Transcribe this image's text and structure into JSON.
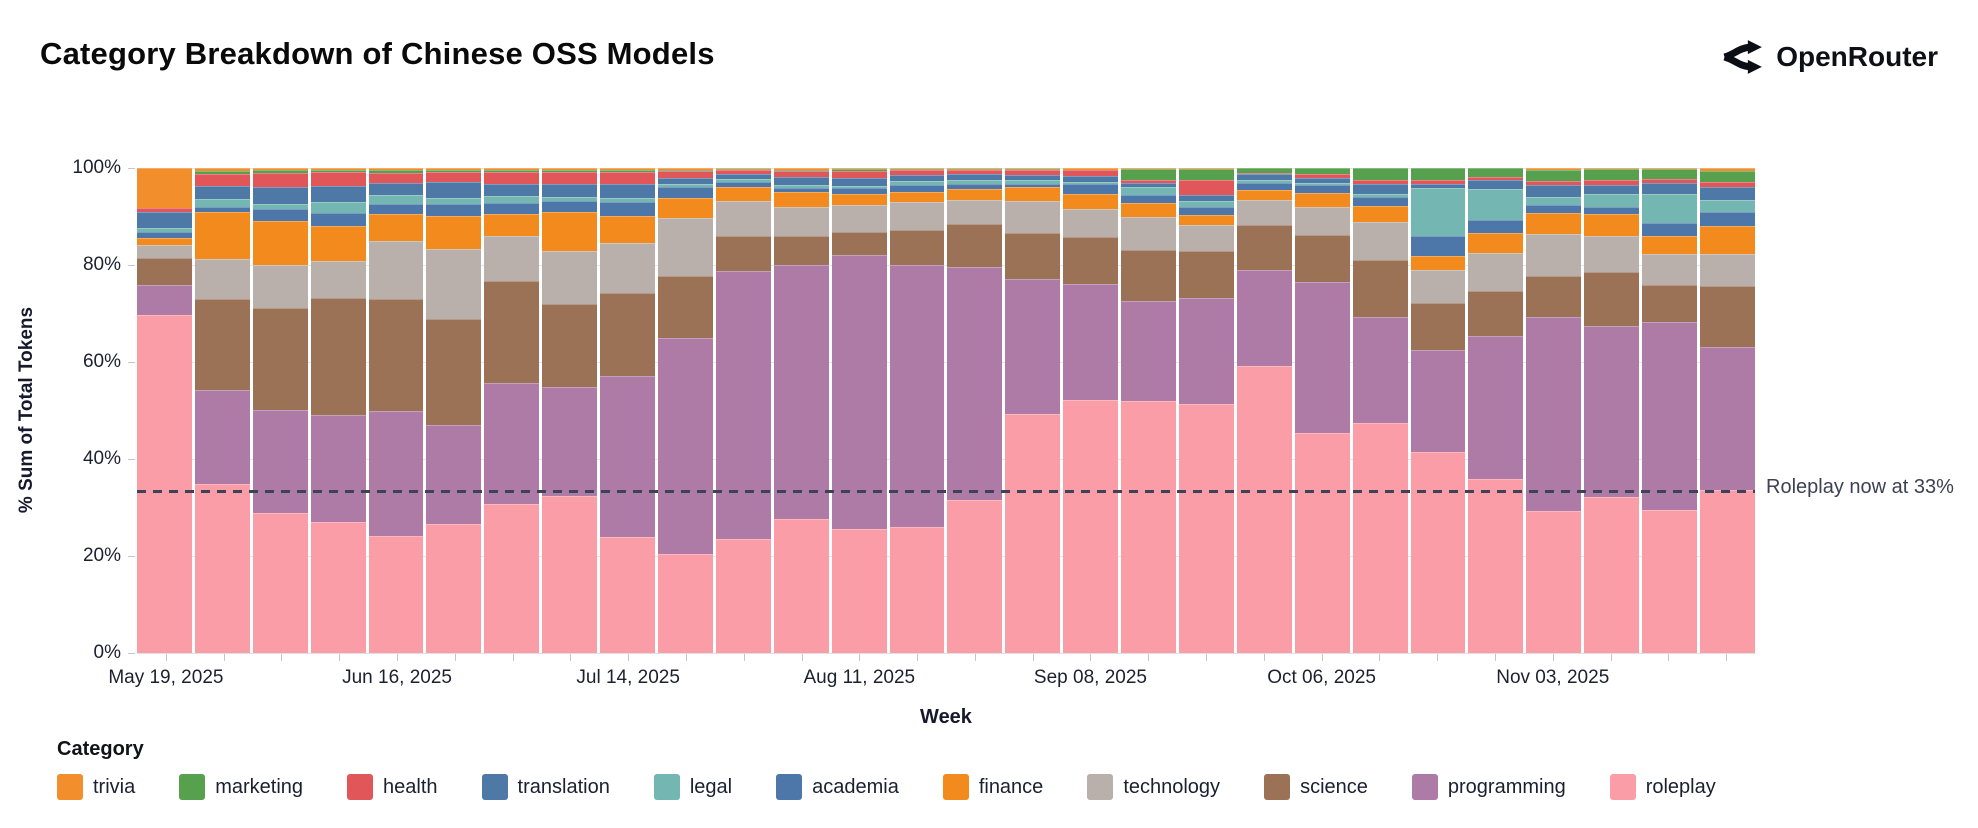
{
  "header": {
    "title": "Category Breakdown of Chinese OSS Models",
    "brand": "OpenRouter"
  },
  "y_axis": {
    "label": "% Sum of Total Tokens",
    "ticks": [
      {
        "pct": 0,
        "label": "0%"
      },
      {
        "pct": 20,
        "label": "20%"
      },
      {
        "pct": 40,
        "label": "40%"
      },
      {
        "pct": 60,
        "label": "60%"
      },
      {
        "pct": 80,
        "label": "80%"
      },
      {
        "pct": 100,
        "label": "100%"
      }
    ]
  },
  "x_axis": {
    "label": "Week",
    "tick_labels": [
      {
        "index": 0,
        "label": "May 19, 2025"
      },
      {
        "index": 4,
        "label": "Jun 16, 2025"
      },
      {
        "index": 8,
        "label": "Jul 14, 2025"
      },
      {
        "index": 12,
        "label": "Aug 11, 2025"
      },
      {
        "index": 16,
        "label": "Sep 08, 2025"
      },
      {
        "index": 20,
        "label": "Oct 06, 2025"
      },
      {
        "index": 24,
        "label": "Nov 03, 2025"
      }
    ]
  },
  "annotation": {
    "text": "Roleplay now at 33%",
    "line_pct": 33.5
  },
  "legend": {
    "title": "Category",
    "order": [
      "trivia",
      "marketing",
      "health",
      "translation",
      "legal",
      "academia",
      "finance",
      "technology",
      "science",
      "programming",
      "roleplay"
    ]
  },
  "chart_data": {
    "type": "bar",
    "subtype": "stacked-100pct",
    "title": "Category Breakdown of Chinese OSS Models",
    "xlabel": "Week",
    "ylabel": "% Sum of Total Tokens",
    "ylim": [
      0,
      100
    ],
    "grid": true,
    "legend_position": "bottom",
    "annotation": {
      "text": "Roleplay now at 33%",
      "y": 33
    },
    "categories": [
      "May 19, 2025",
      "May 26, 2025",
      "Jun 02, 2025",
      "Jun 09, 2025",
      "Jun 16, 2025",
      "Jun 23, 2025",
      "Jun 30, 2025",
      "Jul 07, 2025",
      "Jul 14, 2025",
      "Jul 21, 2025",
      "Jul 28, 2025",
      "Aug 04, 2025",
      "Aug 11, 2025",
      "Aug 18, 2025",
      "Aug 25, 2025",
      "Sep 01, 2025",
      "Sep 08, 2025",
      "Sep 15, 2025",
      "Sep 22, 2025",
      "Sep 29, 2025",
      "Oct 06, 2025",
      "Oct 13, 2025",
      "Oct 20, 2025",
      "Oct 27, 2025",
      "Nov 03, 2025",
      "Nov 10, 2025",
      "Nov 17, 2025",
      "Nov 24, 2025"
    ],
    "stack_order_bottom_to_top": [
      "roleplay",
      "programming",
      "science",
      "technology",
      "finance",
      "academia",
      "legal",
      "translation",
      "health",
      "marketing",
      "trivia"
    ],
    "series": [
      {
        "name": "roleplay",
        "color": "#fb9da6",
        "values": [
          69.7,
          34.8,
          29.0,
          27.0,
          24.1,
          26.6,
          30.8,
          32.5,
          23.9,
          20.4,
          23.5,
          27.7,
          25.6,
          25.9,
          31.5,
          49.3,
          52.2,
          51.9,
          51.5,
          59.1,
          45.3,
          47.4,
          41.4,
          36.0,
          29.3,
          32.2,
          29.4,
          33.8
        ]
      },
      {
        "name": "programming",
        "color": "#ad7ba5",
        "values": [
          6.2,
          19.5,
          21.1,
          22.1,
          25.9,
          20.4,
          24.9,
          22.5,
          33.2,
          44.6,
          55.5,
          52.4,
          56.4,
          54.2,
          48.0,
          27.8,
          23.9,
          20.7,
          21.8,
          19.9,
          31.3,
          21.9,
          21.2,
          29.5,
          40.2,
          35.4,
          38.7,
          29.4
        ]
      },
      {
        "name": "science",
        "color": "#9c7257",
        "values": [
          5.5,
          18.7,
          21.1,
          24.3,
          23.0,
          21.8,
          21.1,
          17.1,
          17.2,
          12.8,
          7.3,
          6.0,
          4.8,
          7.2,
          9.0,
          9.5,
          9.7,
          10.4,
          9.8,
          9.2,
          9.5,
          11.8,
          9.7,
          9.3,
          8.4,
          11.1,
          7.8,
          12.7
        ]
      },
      {
        "name": "technology",
        "color": "#b9afab",
        "values": [
          2.8,
          8.2,
          8.9,
          7.6,
          12.0,
          14.5,
          9.1,
          10.9,
          10.4,
          11.8,
          7.1,
          5.9,
          5.5,
          5.7,
          5.0,
          6.6,
          5.8,
          6.9,
          5.4,
          5.3,
          5.9,
          7.8,
          6.7,
          7.8,
          8.7,
          7.5,
          6.2,
          6.7
        ]
      },
      {
        "name": "finance",
        "color": "#f28a1e",
        "values": [
          1.3,
          9.7,
          9.0,
          7.3,
          5.7,
          6.9,
          4.7,
          8.0,
          5.5,
          4.3,
          2.9,
          3.1,
          2.4,
          2.1,
          2.1,
          2.8,
          3.0,
          2.9,
          2.1,
          2.0,
          2.8,
          3.2,
          3.0,
          4.1,
          4.3,
          4.6,
          3.9,
          5.7
        ]
      },
      {
        "name": "academia",
        "color": "#4d77a9",
        "values": [
          1.4,
          1.0,
          2.6,
          2.6,
          1.9,
          2.3,
          2.2,
          2.4,
          2.8,
          2.2,
          1.2,
          0.8,
          1.1,
          1.4,
          1.2,
          0.8,
          2.1,
          1.7,
          1.5,
          1.5,
          1.7,
          1.9,
          4.1,
          2.6,
          1.7,
          1.4,
          2.6,
          3.0
        ]
      },
      {
        "name": "legal",
        "color": "#74b6b1",
        "values": [
          0.7,
          1.7,
          0.9,
          2.3,
          1.9,
          1.4,
          1.4,
          0.8,
          1.0,
          0.6,
          0.6,
          0.6,
          0.5,
          0.8,
          0.7,
          0.7,
          0.5,
          1.5,
          1.4,
          0.5,
          0.5,
          0.6,
          9.9,
          6.4,
          1.7,
          2.6,
          5.9,
          2.3
        ]
      },
      {
        "name": "translation",
        "color": "#4e79a7",
        "values": [
          3.4,
          2.8,
          3.6,
          3.3,
          2.6,
          3.3,
          2.5,
          2.6,
          2.9,
          1.2,
          1.0,
          1.7,
          1.6,
          1.3,
          1.2,
          1.0,
          1.2,
          0.9,
          1.2,
          1.2,
          1.0,
          2.2,
          0.8,
          1.9,
          2.3,
          1.9,
          2.3,
          2.8
        ]
      },
      {
        "name": "health",
        "color": "#e15759",
        "values": [
          0.8,
          2.4,
          2.9,
          2.8,
          1.9,
          2.0,
          2.5,
          2.4,
          2.3,
          1.4,
          0.7,
          1.2,
          1.6,
          1.0,
          0.8,
          1.0,
          1.2,
          0.7,
          3.1,
          0.2,
          0.7,
          0.8,
          0.8,
          0.7,
          1.0,
          1.0,
          0.8,
          1.1
        ]
      },
      {
        "name": "marketing",
        "color": "#57a14e",
        "values": [
          0.0,
          0.7,
          0.6,
          0.5,
          0.7,
          0.5,
          0.5,
          0.5,
          0.5,
          0.4,
          0.3,
          0.4,
          0.3,
          0.3,
          0.3,
          0.3,
          0.1,
          2.3,
          2.3,
          1.1,
          1.3,
          2.4,
          2.5,
          1.8,
          2.3,
          2.4,
          2.1,
          2.1
        ]
      },
      {
        "name": "trivia",
        "color": "#f28e2b",
        "values": [
          8.2,
          0.5,
          0.4,
          0.4,
          0.4,
          0.3,
          0.3,
          0.4,
          0.4,
          0.3,
          0.2,
          0.3,
          0.2,
          0.1,
          0.2,
          0.2,
          0.3,
          0.1,
          0.1,
          0.0,
          0.0,
          0.0,
          0.0,
          0.0,
          0.3,
          0.1,
          0.2,
          0.7
        ]
      }
    ]
  }
}
